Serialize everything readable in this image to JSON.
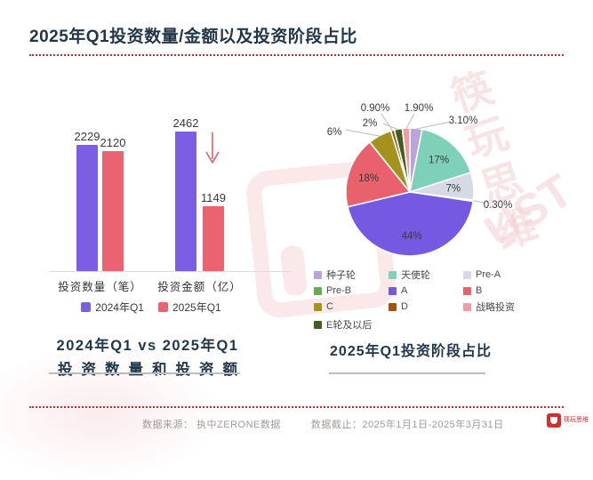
{
  "header": {
    "title": "2025年Q1投资数量/金额以及投资阶段占比"
  },
  "bar_section": {
    "caption_line1": "2024年Q1 vs 2025年Q1",
    "caption_line2": "投资数量和投资额"
  },
  "pie_section": {
    "caption": "2025年Q1投资阶段占比",
    "legend_display_order": [
      "种子轮",
      "天使轮",
      "Pre-A",
      "Pre-B",
      "A",
      "B",
      "C",
      "D",
      "战略投资",
      "E轮及以后"
    ]
  },
  "chart_data": [
    {
      "type": "bar",
      "title": "2024年Q1 vs 2025年Q1 投资数量和投资额",
      "categories": [
        "投资数量（笔）",
        "投资金额（亿）"
      ],
      "series": [
        {
          "name": "2024年Q1",
          "color": "#7b5ee4",
          "values": [
            2229,
            2462
          ]
        },
        {
          "name": "2025年Q1",
          "color": "#eb6370",
          "values": [
            2120,
            1149
          ]
        }
      ],
      "ylim": [
        0,
        2462
      ],
      "grid": false,
      "legend_position": "bottom",
      "annotation": "down-arrow beside 2025 investment amount drop"
    },
    {
      "type": "pie",
      "title": "2025年Q1投资阶段占比",
      "slices": [
        {
          "label": "种子轮",
          "value": 3.1,
          "display": "3.10%",
          "color": "#b9a5db"
        },
        {
          "label": "天使轮",
          "value": 17,
          "display": "17%",
          "color": "#7fd0b9"
        },
        {
          "label": "Pre-A",
          "value": 7,
          "display": "7%",
          "color": "#d6dae4"
        },
        {
          "label": "Pre-B",
          "value": 0.3,
          "display": "0.30%",
          "color": "#63ae53"
        },
        {
          "label": "A",
          "value": 44,
          "display": "44%",
          "color": "#7659e3"
        },
        {
          "label": "B",
          "value": 18,
          "display": "18%",
          "color": "#e9616d"
        },
        {
          "label": "C",
          "value": 6,
          "display": "6%",
          "color": "#a4921f"
        },
        {
          "label": "D",
          "value": 0.9,
          "display": "0.90%",
          "color": "#a9500f"
        },
        {
          "label": "E轮及以后",
          "value": 2,
          "display": "2%",
          "color": "#3f5e20"
        },
        {
          "label": "战略投资",
          "value": 1.9,
          "display": "1.90%",
          "color": "#f19ca0"
        }
      ]
    }
  ],
  "footer": {
    "source": "数据来源：  执中ZERONE数据",
    "deadline": "数据截止：2025年1月1日-2025年3月31日"
  },
  "logo": {
    "name": "筷玩思维"
  },
  "watermark": {
    "text_cn": "筷玩思维",
    "text_latin": "UST"
  }
}
